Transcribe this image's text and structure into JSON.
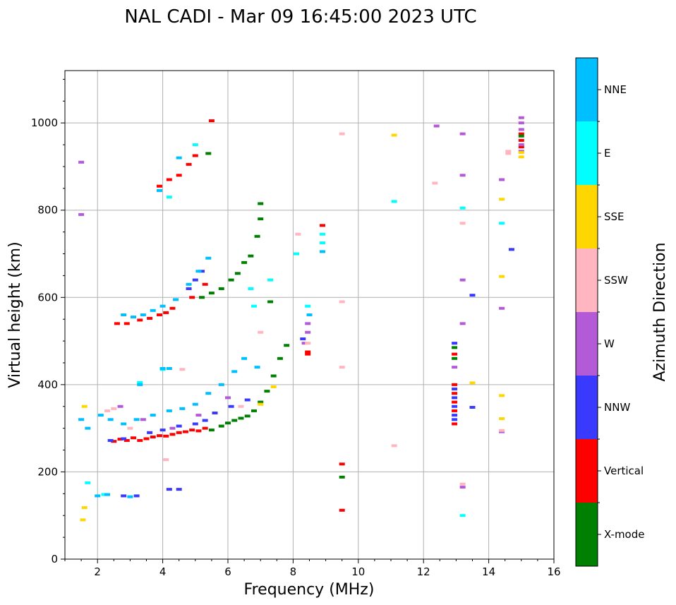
{
  "chart_data": {
    "type": "scatter",
    "title": "NAL CADI - Mar 09 16:45:00 2023 UTC",
    "xlabel": "Frequency (MHz)",
    "ylabel": "Virtual height (km)",
    "xlim": [
      1,
      16
    ],
    "ylim": [
      0,
      1120
    ],
    "xticks": [
      2,
      4,
      6,
      8,
      10,
      12,
      14,
      16
    ],
    "yticks": [
      0,
      200,
      400,
      600,
      800,
      1000
    ],
    "grid": true,
    "colorbar": {
      "title": "Azimuth Direction",
      "categories": [
        {
          "name": "X-mode",
          "color": "#008000"
        },
        {
          "name": "Vertical",
          "color": "#ff0000"
        },
        {
          "name": "NNW",
          "color": "#3a3aff"
        },
        {
          "name": "W",
          "color": "#b35ad6"
        },
        {
          "name": "SSW",
          "color": "#ffb6c1"
        },
        {
          "name": "SSE",
          "color": "#ffd700"
        },
        {
          "name": "E",
          "color": "#00ffff"
        },
        {
          "name": "NNE",
          "color": "#00bfff"
        }
      ]
    },
    "series": [
      {
        "name": "Vertical",
        "points": [
          [
            2.5,
            270
          ],
          [
            2.7,
            275
          ],
          [
            2.9,
            272
          ],
          [
            3.1,
            278
          ],
          [
            3.3,
            272
          ],
          [
            3.5,
            276
          ],
          [
            3.7,
            280
          ],
          [
            3.9,
            283
          ],
          [
            4.1,
            282
          ],
          [
            4.3,
            286
          ],
          [
            4.5,
            290
          ],
          [
            4.7,
            292
          ],
          [
            4.9,
            296
          ],
          [
            5.1,
            294
          ],
          [
            5.3,
            300
          ],
          [
            2.6,
            540
          ],
          [
            2.9,
            540
          ],
          [
            3.3,
            548
          ],
          [
            3.6,
            552
          ],
          [
            3.9,
            560
          ],
          [
            4.1,
            565
          ],
          [
            4.3,
            575
          ],
          [
            4.9,
            600
          ],
          [
            5.3,
            630
          ],
          [
            3.9,
            855
          ],
          [
            4.2,
            870
          ],
          [
            4.5,
            880
          ],
          [
            4.8,
            905
          ],
          [
            5.0,
            925
          ],
          [
            5.5,
            1005
          ],
          [
            9.5,
            218
          ],
          [
            9.5,
            112
          ],
          [
            8.45,
            470
          ],
          [
            8.45,
            475
          ],
          [
            8.9,
            765
          ],
          [
            12.95,
            310
          ],
          [
            12.95,
            340
          ],
          [
            12.95,
            360
          ],
          [
            12.95,
            380
          ],
          [
            12.95,
            400
          ],
          [
            12.95,
            470
          ],
          [
            15.0,
            960
          ],
          [
            15.0,
            975
          ],
          [
            15.0,
            945
          ]
        ]
      },
      {
        "name": "X-mode",
        "points": [
          [
            5.5,
            296
          ],
          [
            5.8,
            305
          ],
          [
            6.0,
            312
          ],
          [
            6.2,
            318
          ],
          [
            6.4,
            323
          ],
          [
            6.6,
            328
          ],
          [
            6.8,
            340
          ],
          [
            7.0,
            360
          ],
          [
            7.2,
            385
          ],
          [
            7.4,
            420
          ],
          [
            7.6,
            460
          ],
          [
            7.8,
            490
          ],
          [
            5.2,
            600
          ],
          [
            5.5,
            610
          ],
          [
            5.8,
            620
          ],
          [
            6.1,
            640
          ],
          [
            6.3,
            655
          ],
          [
            6.5,
            680
          ],
          [
            6.7,
            695
          ],
          [
            6.9,
            740
          ],
          [
            7.0,
            780
          ],
          [
            7.0,
            815
          ],
          [
            7.3,
            590
          ],
          [
            9.5,
            188
          ],
          [
            12.95,
            460
          ],
          [
            12.95,
            485
          ],
          [
            5.4,
            930
          ],
          [
            15.0,
            970
          ]
        ]
      },
      {
        "name": "NNW",
        "points": [
          [
            2.4,
            272
          ],
          [
            2.8,
            276
          ],
          [
            3.6,
            290
          ],
          [
            4.0,
            296
          ],
          [
            4.5,
            305
          ],
          [
            5.0,
            310
          ],
          [
            5.3,
            318
          ],
          [
            5.6,
            335
          ],
          [
            6.1,
            350
          ],
          [
            6.6,
            365
          ],
          [
            4.8,
            620
          ],
          [
            5.0,
            640
          ],
          [
            5.2,
            660
          ],
          [
            2.8,
            145
          ],
          [
            3.2,
            145
          ],
          [
            4.2,
            160
          ],
          [
            4.5,
            160
          ],
          [
            8.3,
            505
          ],
          [
            12.95,
            320
          ],
          [
            12.95,
            330
          ],
          [
            12.95,
            350
          ],
          [
            12.95,
            370
          ],
          [
            12.95,
            390
          ],
          [
            12.95,
            495
          ],
          [
            13.5,
            605
          ],
          [
            13.5,
            348
          ],
          [
            14.7,
            710
          ]
        ]
      },
      {
        "name": "W",
        "points": [
          [
            2.7,
            350
          ],
          [
            3.4,
            320
          ],
          [
            4.3,
            300
          ],
          [
            5.1,
            330
          ],
          [
            6.0,
            370
          ],
          [
            8.35,
            495
          ],
          [
            8.45,
            520
          ],
          [
            8.45,
            540
          ],
          [
            12.4,
            993
          ],
          [
            13.2,
            975
          ],
          [
            13.2,
            880
          ],
          [
            13.2,
            640
          ],
          [
            13.2,
            540
          ],
          [
            13.2,
            165
          ],
          [
            14.4,
            870
          ],
          [
            14.4,
            575
          ],
          [
            14.4,
            292
          ],
          [
            15.0,
            1012
          ],
          [
            15.0,
            1000
          ],
          [
            15.0,
            985
          ],
          [
            15.0,
            950
          ],
          [
            15.0,
            935
          ],
          [
            12.95,
            440
          ],
          [
            1.5,
            910
          ],
          [
            1.5,
            790
          ]
        ]
      },
      {
        "name": "SSW",
        "points": [
          [
            2.3,
            340
          ],
          [
            2.5,
            345
          ],
          [
            3.0,
            300
          ],
          [
            4.1,
            228
          ],
          [
            4.6,
            435
          ],
          [
            6.4,
            350
          ],
          [
            7.0,
            520
          ],
          [
            8.15,
            745
          ],
          [
            8.45,
            495
          ],
          [
            9.5,
            975
          ],
          [
            9.5,
            590
          ],
          [
            9.5,
            440
          ],
          [
            11.1,
            260
          ],
          [
            12.35,
            862
          ],
          [
            13.2,
            770
          ],
          [
            13.2,
            172
          ],
          [
            14.4,
            295
          ],
          [
            14.6,
            935
          ],
          [
            14.6,
            930
          ]
        ]
      },
      {
        "name": "SSE",
        "points": [
          [
            1.55,
            90
          ],
          [
            1.6,
            118
          ],
          [
            1.6,
            350
          ],
          [
            7.0,
            355
          ],
          [
            7.4,
            395
          ],
          [
            11.1,
            972
          ],
          [
            13.5,
            404
          ],
          [
            14.4,
            825
          ],
          [
            14.4,
            648
          ],
          [
            14.4,
            375
          ],
          [
            14.4,
            322
          ],
          [
            15.0,
            922
          ],
          [
            15.0,
            932
          ]
        ]
      },
      {
        "name": "E",
        "points": [
          [
            1.7,
            175
          ],
          [
            2.2,
            148
          ],
          [
            3.3,
            405
          ],
          [
            4.0,
            435
          ],
          [
            4.2,
            830
          ],
          [
            5.0,
            950
          ],
          [
            6.7,
            620
          ],
          [
            6.8,
            580
          ],
          [
            7.3,
            640
          ],
          [
            8.1,
            700
          ],
          [
            8.45,
            580
          ],
          [
            8.9,
            745
          ],
          [
            8.9,
            725
          ],
          [
            11.1,
            820
          ],
          [
            13.2,
            805
          ],
          [
            13.2,
            100
          ],
          [
            14.4,
            770
          ]
        ]
      },
      {
        "name": "NNE",
        "points": [
          [
            1.5,
            320
          ],
          [
            1.7,
            300
          ],
          [
            2.1,
            330
          ],
          [
            2.4,
            320
          ],
          [
            2.8,
            310
          ],
          [
            3.2,
            320
          ],
          [
            3.7,
            330
          ],
          [
            4.2,
            340
          ],
          [
            4.6,
            345
          ],
          [
            5.0,
            355
          ],
          [
            5.4,
            380
          ],
          [
            5.8,
            400
          ],
          [
            6.2,
            430
          ],
          [
            6.5,
            460
          ],
          [
            6.9,
            440
          ],
          [
            2.8,
            560
          ],
          [
            3.1,
            555
          ],
          [
            3.4,
            560
          ],
          [
            3.7,
            570
          ],
          [
            4.0,
            580
          ],
          [
            4.4,
            595
          ],
          [
            4.8,
            630
          ],
          [
            5.1,
            660
          ],
          [
            5.4,
            690
          ],
          [
            3.9,
            845
          ],
          [
            4.5,
            920
          ],
          [
            4.0,
            437
          ],
          [
            4.2,
            437
          ],
          [
            3.3,
            400
          ],
          [
            2.0,
            145
          ],
          [
            2.3,
            148
          ],
          [
            3.0,
            143
          ],
          [
            8.9,
            705
          ],
          [
            8.5,
            560
          ]
        ]
      }
    ]
  }
}
